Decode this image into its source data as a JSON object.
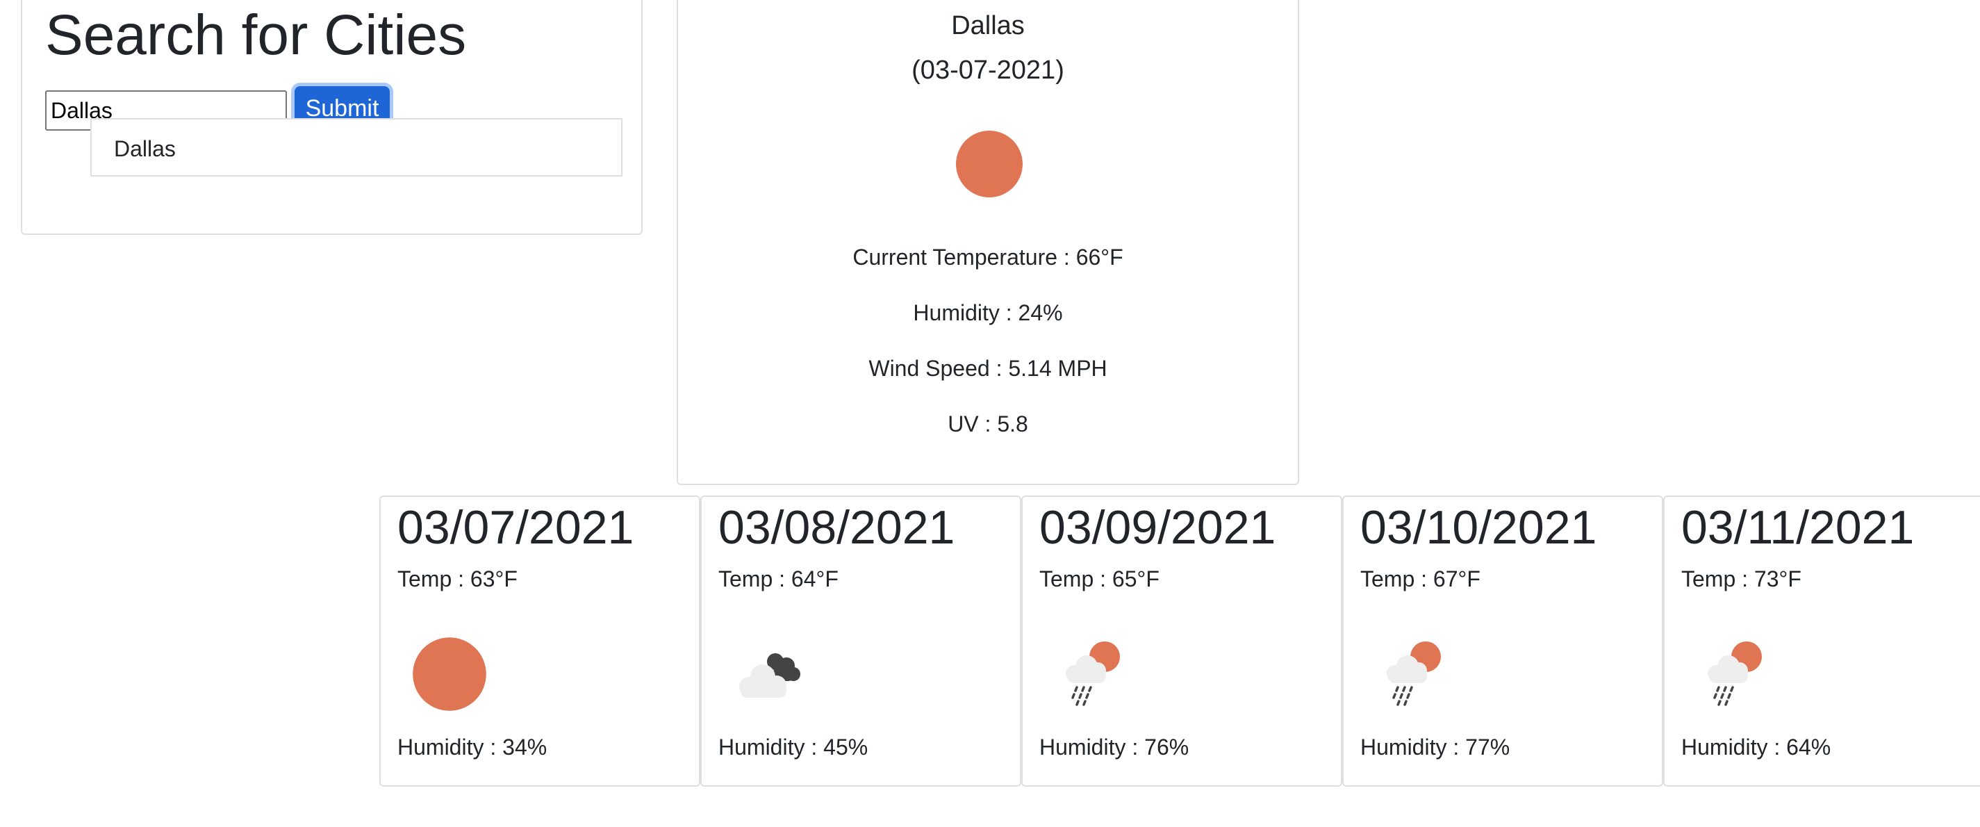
{
  "search": {
    "title": "Search for Cities",
    "input_value": "Dallas",
    "submit_label": "Submit",
    "history": [
      "Dallas"
    ]
  },
  "current": {
    "city": "Dallas",
    "date": "(03-07-2021)",
    "icon": "sun-icon",
    "temperature": "Current Temperature : 66°F",
    "humidity": "Humidity : 24%",
    "wind": "Wind Speed : 5.14 MPH",
    "uv": "UV : 5.8"
  },
  "forecast": [
    {
      "date": "03/07/2021",
      "temp": "Temp : 63°F",
      "icon": "sun-icon",
      "humidity": "Humidity : 34%"
    },
    {
      "date": "03/08/2021",
      "temp": "Temp : 64°F",
      "icon": "cloudy-icon",
      "humidity": "Humidity : 45%"
    },
    {
      "date": "03/09/2021",
      "temp": "Temp : 65°F",
      "icon": "sun-rain-icon",
      "humidity": "Humidity : 76%"
    },
    {
      "date": "03/10/2021",
      "temp": "Temp : 67°F",
      "icon": "sun-rain-icon",
      "humidity": "Humidity : 77%"
    },
    {
      "date": "03/11/2021",
      "temp": "Temp : 73°F",
      "icon": "sun-rain-icon",
      "humidity": "Humidity : 64%"
    }
  ],
  "colors": {
    "sun": "#e07554",
    "cloud_light": "#eeeeee",
    "cloud_dark": "#444444",
    "accent": "#1e65d6"
  }
}
